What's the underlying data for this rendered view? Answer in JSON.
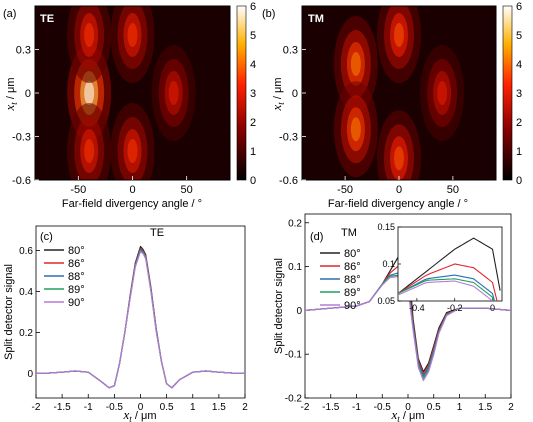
{
  "chart_data": [
    {
      "panel": "(a)",
      "type": "heatmap",
      "tag": "TE",
      "xlabel": "Far-field divergency angle / °",
      "ylabel_var": "x",
      "ylabel_sub": "t",
      "ylabel_unit": " / μm",
      "xticks": [
        "-50",
        "0",
        "50"
      ],
      "yticks": [
        "0.3",
        "0",
        "-0.3",
        "-0.6"
      ],
      "xlim": [
        -90,
        90
      ],
      "ylim": [
        -0.6,
        0.6
      ],
      "colorbar": {
        "range": [
          0,
          6
        ],
        "ticks": [
          "6",
          "5",
          "4",
          "3",
          "2",
          "1",
          "0"
        ]
      },
      "lobes": [
        {
          "x": -40,
          "y": 0.0,
          "peak": 6.0
        },
        {
          "x": -40,
          "y": 0.4,
          "peak": 3.5
        },
        {
          "x": -40,
          "y": -0.4,
          "peak": 3.5
        },
        {
          "x": 0,
          "y": 0.4,
          "peak": 3.5
        },
        {
          "x": 0,
          "y": -0.4,
          "peak": 3.5
        },
        {
          "x": 38,
          "y": 0.0,
          "peak": 3.0
        }
      ]
    },
    {
      "panel": "(b)",
      "type": "heatmap",
      "tag": "TM",
      "xlabel": "Far-field divergency angle / °",
      "ylabel_var": "x",
      "ylabel_sub": "t",
      "ylabel_unit": " / μm",
      "xticks": [
        "-50",
        "0",
        "50"
      ],
      "yticks": [
        "0.3",
        "0",
        "-0.3",
        "-0.6"
      ],
      "xlim": [
        -90,
        90
      ],
      "ylim": [
        -0.6,
        0.6
      ],
      "colorbar": {
        "range": [
          0,
          6
        ],
        "ticks": [
          "6",
          "5",
          "4",
          "3",
          "2",
          "1",
          "0"
        ]
      },
      "lobes": [
        {
          "x": -40,
          "y": 0.2,
          "peak": 4.2
        },
        {
          "x": -40,
          "y": -0.25,
          "peak": 4.2
        },
        {
          "x": 0,
          "y": 0.4,
          "peak": 3.8
        },
        {
          "x": 0,
          "y": -0.45,
          "peak": 3.8
        },
        {
          "x": 40,
          "y": 0.0,
          "peak": 3.0
        }
      ]
    },
    {
      "panel": "(c)",
      "type": "line",
      "tag": "TE",
      "xlabel_var": "x",
      "xlabel_sub": "t",
      "xlabel_unit": " / μm",
      "ylabel": "Split detector signal",
      "xlim": [
        -2,
        2
      ],
      "ylim": [
        -0.12,
        0.72
      ],
      "xticks": [
        "-2",
        "-1.5",
        "-1",
        "-0.5",
        "0",
        "0.5",
        "1",
        "1.5",
        "2"
      ],
      "yticks": [
        "0",
        "0.2",
        "0.4",
        "0.6"
      ],
      "x": [
        -2,
        -1.75,
        -1.5,
        -1.25,
        -1,
        -0.75,
        -0.6,
        -0.5,
        -0.4,
        -0.3,
        -0.2,
        -0.1,
        0,
        0.05,
        0.1,
        0.2,
        0.3,
        0.4,
        0.5,
        0.6,
        0.75,
        1,
        1.25,
        1.5,
        1.75,
        2
      ],
      "series": [
        {
          "name": "80°",
          "color": "#222222",
          "values": [
            0,
            0.002,
            0.006,
            0.012,
            0.006,
            -0.04,
            -0.07,
            -0.06,
            0.05,
            0.2,
            0.38,
            0.54,
            0.62,
            0.605,
            0.58,
            0.42,
            0.22,
            0.06,
            -0.05,
            -0.07,
            -0.03,
            0.006,
            0.012,
            0.006,
            0.002,
            0
          ]
        },
        {
          "name": "86°",
          "color": "#e0262b",
          "values": [
            0,
            0.002,
            0.006,
            0.012,
            0.006,
            -0.04,
            -0.07,
            -0.06,
            0.05,
            0.2,
            0.375,
            0.535,
            0.61,
            0.6,
            0.575,
            0.415,
            0.215,
            0.06,
            -0.05,
            -0.07,
            -0.03,
            0.006,
            0.012,
            0.006,
            0.002,
            0
          ]
        },
        {
          "name": "88°",
          "color": "#2b6fb6",
          "values": [
            0,
            0.002,
            0.006,
            0.012,
            0.006,
            -0.04,
            -0.07,
            -0.06,
            0.05,
            0.2,
            0.37,
            0.53,
            0.605,
            0.595,
            0.57,
            0.41,
            0.21,
            0.06,
            -0.05,
            -0.07,
            -0.03,
            0.006,
            0.012,
            0.006,
            0.002,
            0
          ]
        },
        {
          "name": "89°",
          "color": "#21a05a",
          "values": [
            0,
            0.002,
            0.006,
            0.012,
            0.006,
            -0.04,
            -0.07,
            -0.06,
            0.05,
            0.2,
            0.37,
            0.525,
            0.6,
            0.59,
            0.565,
            0.405,
            0.21,
            0.06,
            -0.05,
            -0.07,
            -0.03,
            0.006,
            0.012,
            0.006,
            0.002,
            0
          ]
        },
        {
          "name": "90°",
          "color": "#b57ad8",
          "values": [
            0,
            0.002,
            0.006,
            0.012,
            0.006,
            -0.04,
            -0.07,
            -0.06,
            0.05,
            0.2,
            0.365,
            0.52,
            0.595,
            0.585,
            0.56,
            0.4,
            0.205,
            0.06,
            -0.05,
            -0.07,
            -0.03,
            0.006,
            0.012,
            0.006,
            0.002,
            0
          ]
        }
      ]
    },
    {
      "panel": "(d)",
      "type": "line",
      "tag": "TM",
      "xlabel_var": "x",
      "xlabel_sub": "t",
      "xlabel_unit": " / μm",
      "ylabel": "Split detector signal",
      "xlim": [
        -2,
        2
      ],
      "ylim": [
        -0.2,
        0.22
      ],
      "xticks": [
        "-2",
        "-1.5",
        "-1",
        "-0.5",
        "0",
        "0.5",
        "1",
        "1.5",
        "2"
      ],
      "yticks": [
        "-0.2",
        "-0.1",
        "0",
        "0.1",
        "0.2"
      ],
      "x": [
        -2,
        -1.5,
        -1,
        -0.75,
        -0.5,
        -0.35,
        -0.2,
        -0.1,
        0,
        0.1,
        0.2,
        0.3,
        0.4,
        0.5,
        0.6,
        0.75,
        1,
        1.5,
        2
      ],
      "series": [
        {
          "name": "80°",
          "color": "#222222",
          "values": [
            0,
            0.005,
            0.01,
            0.02,
            0.06,
            0.09,
            0.12,
            0.135,
            0.12,
            -0.02,
            -0.11,
            -0.14,
            -0.12,
            -0.08,
            -0.04,
            -0.005,
            0.005,
            0.005,
            0
          ]
        },
        {
          "name": "86°",
          "color": "#e0262b",
          "values": [
            0,
            0.005,
            0.01,
            0.02,
            0.06,
            0.085,
            0.1,
            0.095,
            0.075,
            -0.03,
            -0.115,
            -0.145,
            -0.125,
            -0.085,
            -0.045,
            -0.008,
            0.005,
            0.005,
            0
          ]
        },
        {
          "name": "88°",
          "color": "#2b6fb6",
          "values": [
            0,
            0.005,
            0.01,
            0.02,
            0.06,
            0.08,
            0.085,
            0.08,
            0.06,
            -0.035,
            -0.12,
            -0.15,
            -0.13,
            -0.09,
            -0.048,
            -0.01,
            0.005,
            0.005,
            0
          ]
        },
        {
          "name": "89°",
          "color": "#21a05a",
          "values": [
            0,
            0.005,
            0.01,
            0.02,
            0.06,
            0.078,
            0.08,
            0.075,
            0.055,
            -0.04,
            -0.125,
            -0.155,
            -0.135,
            -0.095,
            -0.05,
            -0.01,
            0.005,
            0.005,
            0
          ]
        },
        {
          "name": "90°",
          "color": "#b57ad8",
          "values": [
            0,
            0.005,
            0.01,
            0.02,
            0.058,
            0.075,
            0.077,
            0.07,
            0.05,
            -0.045,
            -0.13,
            -0.16,
            -0.14,
            -0.1,
            -0.052,
            -0.012,
            0.005,
            0.005,
            0
          ]
        }
      ],
      "inset": {
        "xlim": [
          -0.5,
          0.05
        ],
        "ylim": [
          0.05,
          0.15
        ],
        "xticks": [
          "-0.4",
          "-0.2",
          "0"
        ],
        "yticks": [
          "0.15",
          "0.1",
          "0.05"
        ]
      }
    }
  ]
}
